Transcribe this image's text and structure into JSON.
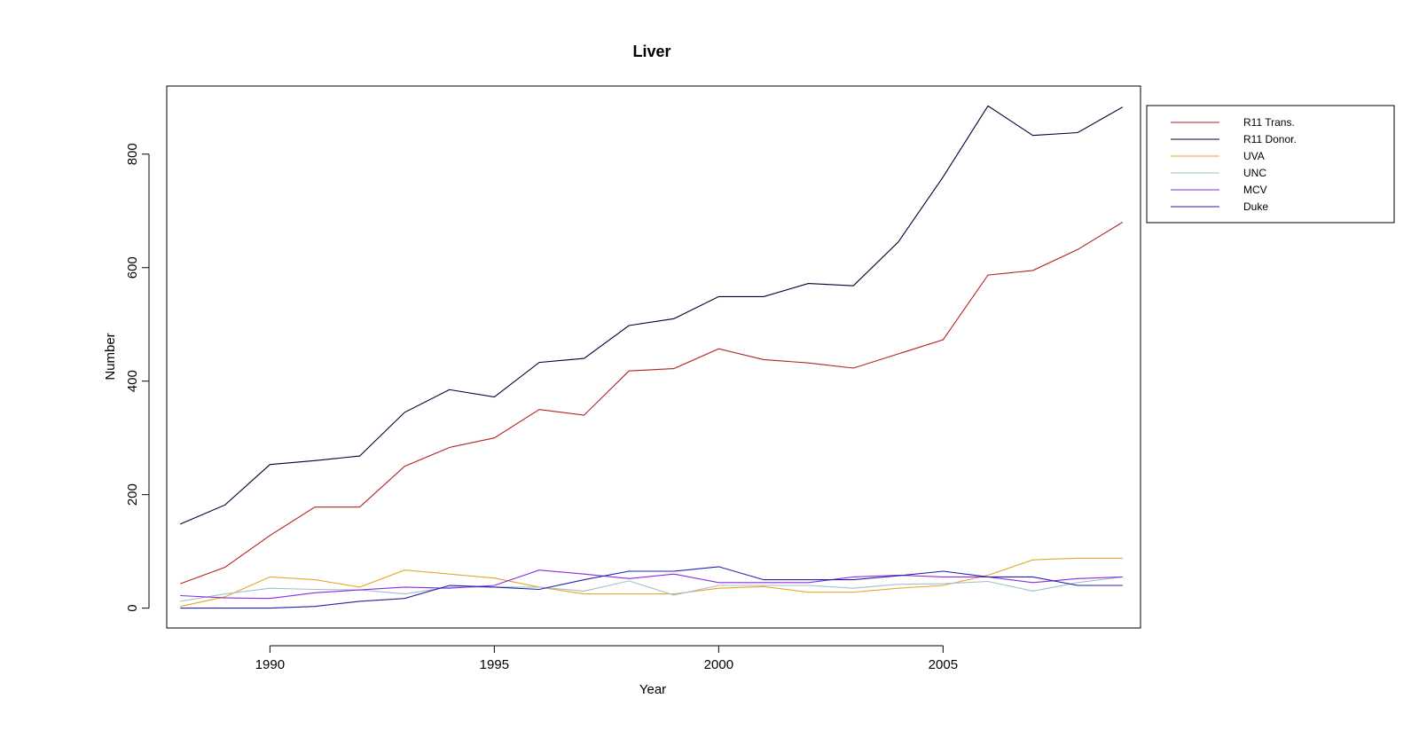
{
  "chart_data": {
    "type": "line",
    "title": "Liver",
    "xlabel": "Year",
    "ylabel": "Number",
    "xlim": [
      1987.7,
      2009.4
    ],
    "ylim": [
      -35,
      920
    ],
    "x_ticks": [
      "1990",
      "1995",
      "2000",
      "2005"
    ],
    "y_ticks": [
      "0",
      "200",
      "400",
      "600",
      "800"
    ],
    "grid": false,
    "legend_position": "right-outside",
    "x": [
      1988,
      1989,
      1990,
      1991,
      1992,
      1993,
      1994,
      1995,
      1996,
      1997,
      1998,
      1999,
      2000,
      2001,
      2002,
      2003,
      2004,
      2005,
      2006,
      2007,
      2008,
      2009
    ],
    "series": [
      {
        "name": "R11 Trans.",
        "color": "#b22222",
        "values": [
          43,
          72,
          128,
          178,
          178,
          250,
          283,
          300,
          350,
          340,
          418,
          422,
          457,
          438,
          432,
          423,
          448,
          473,
          587,
          595,
          632,
          680
        ]
      },
      {
        "name": "R11 Donor.",
        "color": "#000033",
        "values": [
          148,
          182,
          253,
          260,
          268,
          345,
          385,
          372,
          433,
          440,
          498,
          510,
          549,
          549,
          572,
          568,
          645,
          760,
          885,
          833,
          838,
          883
        ]
      },
      {
        "name": "UVA",
        "color": "#e6a627",
        "values": [
          3,
          20,
          55,
          50,
          37,
          67,
          60,
          53,
          37,
          25,
          25,
          25,
          35,
          38,
          28,
          28,
          35,
          40,
          58,
          85,
          88,
          88
        ]
      },
      {
        "name": "UNC",
        "color": "#9fbfcf",
        "values": [
          12,
          25,
          35,
          33,
          32,
          25,
          37,
          37,
          37,
          30,
          48,
          23,
          40,
          40,
          40,
          35,
          42,
          43,
          47,
          30,
          45,
          55
        ]
      },
      {
        "name": "MCV",
        "color": "#8a2be2",
        "values": [
          22,
          18,
          17,
          27,
          32,
          37,
          35,
          40,
          67,
          60,
          52,
          60,
          45,
          45,
          45,
          55,
          58,
          55,
          55,
          45,
          52,
          55
        ]
      },
      {
        "name": "Duke",
        "color": "#2222aa",
        "values": [
          0,
          0,
          0,
          3,
          12,
          17,
          40,
          37,
          33,
          50,
          65,
          65,
          73,
          50,
          50,
          50,
          57,
          65,
          55,
          55,
          40,
          40
        ]
      }
    ]
  }
}
